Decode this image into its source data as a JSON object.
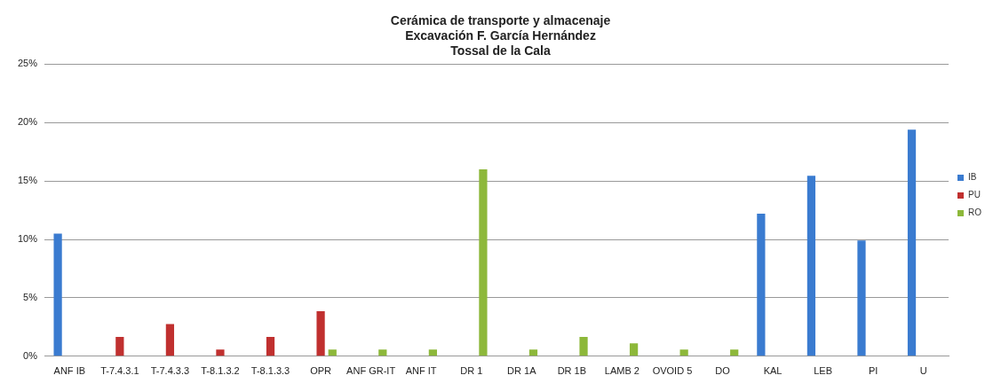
{
  "chart_data": {
    "type": "bar",
    "title": "Cerámica de transporte y almacenaje\nExcavación F. García Hernández\nTossal de la Cala",
    "categories": [
      "ANF IB",
      "T-7.4.3.1",
      "T-7.4.3.3",
      "T-8.1.3.2",
      "T-8.1.3.3",
      "OPR",
      "ANF GR-IT",
      "ANF IT",
      "DR 1",
      "DR 1A",
      "DR 1B",
      "LAMB 2",
      "OVOID 5",
      "DO",
      "KAL",
      "LEB",
      "PI",
      "U"
    ],
    "series": [
      {
        "name": "IB",
        "color": "#3a7bd0",
        "values": [
          10.5,
          null,
          null,
          null,
          null,
          null,
          null,
          null,
          null,
          null,
          null,
          null,
          null,
          null,
          12.2,
          15.45,
          9.9,
          19.4
        ]
      },
      {
        "name": "PU",
        "color": "#c0302f",
        "values": [
          null,
          1.65,
          2.75,
          0.57,
          1.65,
          3.86,
          null,
          null,
          null,
          null,
          null,
          null,
          null,
          null,
          null,
          null,
          null,
          null
        ]
      },
      {
        "name": "RO",
        "color": "#8db83a",
        "values": [
          null,
          null,
          null,
          null,
          null,
          0.57,
          0.57,
          0.57,
          16.0,
          0.57,
          1.65,
          1.1,
          0.57,
          0.57,
          null,
          null,
          null,
          null
        ]
      }
    ],
    "ylim": [
      0,
      25
    ],
    "yticks": [
      {
        "value": 0,
        "label": "0%"
      },
      {
        "value": 5,
        "label": "5%"
      },
      {
        "value": 10,
        "label": "10%"
      },
      {
        "value": 15,
        "label": "15%"
      },
      {
        "value": 20,
        "label": "20%"
      },
      {
        "value": 25,
        "label": "25%"
      }
    ],
    "grid": "y",
    "legend": "right"
  }
}
